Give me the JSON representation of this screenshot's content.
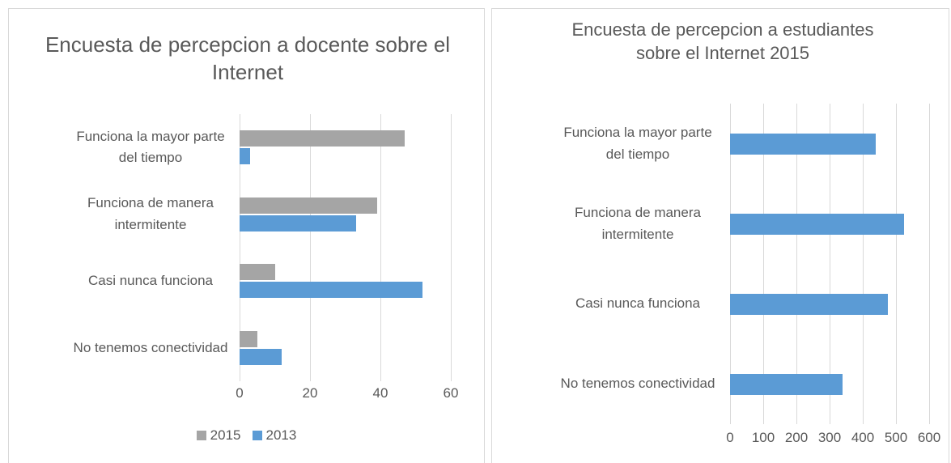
{
  "chart_data": [
    {
      "type": "bar",
      "orientation": "horizontal",
      "title": "Encuesta de percepcion a docente sobre el Internet",
      "categories": [
        "Funciona la mayor parte del tiempo",
        "Funciona de manera intermitente",
        "Casi nunca funciona",
        "No tenemos conectividad"
      ],
      "series": [
        {
          "name": "2015",
          "color": "#a5a5a5",
          "values": [
            47,
            39,
            10,
            5
          ]
        },
        {
          "name": "2013",
          "color": "#5b9bd5",
          "values": [
            3,
            33,
            52,
            12
          ]
        }
      ],
      "xlim": [
        0,
        60
      ],
      "xticks": [
        0,
        20,
        40,
        60
      ],
      "grid": true,
      "legend": "bottom"
    },
    {
      "type": "bar",
      "orientation": "horizontal",
      "title": "Encuesta de percepcion a estudiantes sobre el Internet 2015",
      "categories": [
        "Funciona la mayor parte del tiempo",
        "Funciona de manera intermitente",
        "Casi nunca funciona",
        "No tenemos conectividad"
      ],
      "values": [
        440,
        525,
        475,
        340
      ],
      "color": "#5b9bd5",
      "xlim": [
        0,
        600
      ],
      "xticks": [
        0,
        100,
        200,
        300,
        400,
        500,
        600
      ],
      "grid": true
    }
  ]
}
